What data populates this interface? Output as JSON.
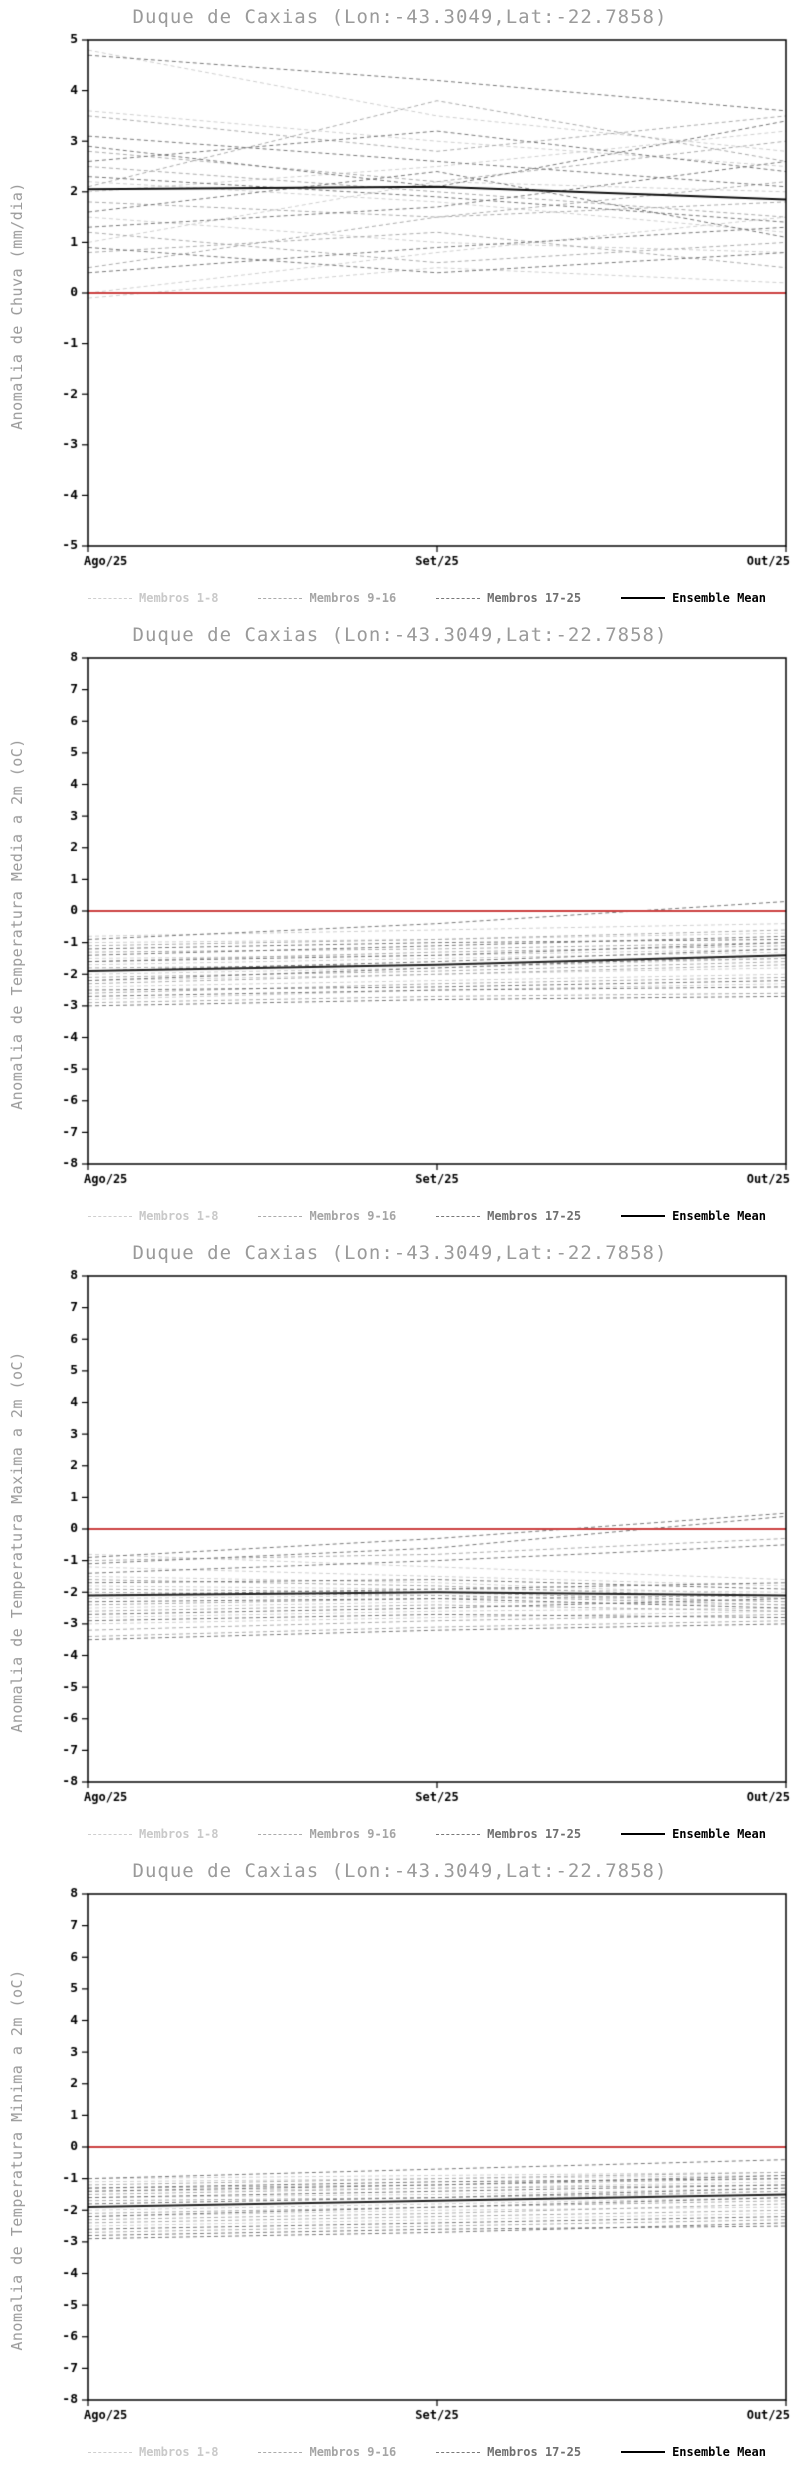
{
  "page": {
    "background": "#ffffff"
  },
  "legend": {
    "entries": [
      {
        "label": "Membros 1-8",
        "color": "#cfcfcf",
        "style": "dashed",
        "label_color": "#c9c9c9"
      },
      {
        "label": "Membros 9-16",
        "color": "#ababab",
        "style": "dashed",
        "label_color": "#a5a5a5"
      },
      {
        "label": "Membros 17-25",
        "color": "#787878",
        "style": "dashed",
        "label_color": "#6f6f6f"
      },
      {
        "label": "Ensemble Mean",
        "color": "#000000",
        "style": "solid",
        "label_color": "#000000"
      }
    ]
  },
  "chart_data": {
    "note": "see charts array",
    "type": "line"
  },
  "charts": [
    {
      "type": "line",
      "title": "Duque de Caxias (Lon:-43.3049,Lat:-22.7858)",
      "ylabel": "Anomalia de Chuva (mm/dia)",
      "ylim": [
        -5,
        5
      ],
      "ytick_step": 1,
      "x_labels": [
        "Ago/25",
        "Set/25",
        "Out/25"
      ],
      "reference_value": 0,
      "reference_color": "#cc4040",
      "mean_color": "#111111",
      "ensemble_mean": [
        2.05,
        2.1,
        1.85
      ],
      "groups": [
        {
          "name": "Membros 1-8",
          "color": "#cfcfcf",
          "series": [
            [
              3.6,
              3.0,
              2.5
            ],
            [
              2.0,
              2.5,
              3.2
            ],
            [
              1.5,
              1.0,
              0.8
            ],
            [
              0.0,
              0.8,
              1.5
            ],
            [
              4.8,
              3.5,
              2.8
            ],
            [
              2.2,
              1.8,
              1.2
            ],
            [
              1.0,
              2.2,
              2.0
            ],
            [
              -0.1,
              0.5,
              0.2
            ]
          ]
        },
        {
          "name": "Membros 9-16",
          "color": "#ababab",
          "series": [
            [
              3.5,
              2.8,
              3.5
            ],
            [
              2.5,
              2.0,
              1.5
            ],
            [
              1.8,
              1.5,
              2.2
            ],
            [
              0.8,
              1.2,
              0.5
            ],
            [
              2.1,
              3.8,
              2.6
            ],
            [
              1.2,
              0.6,
              1.0
            ],
            [
              2.8,
              2.2,
              3.0
            ],
            [
              0.5,
              1.5,
              1.8
            ]
          ]
        },
        {
          "name": "Membros 17-25",
          "color": "#787878",
          "series": [
            [
              4.7,
              4.2,
              3.6
            ],
            [
              2.3,
              1.9,
              1.4
            ],
            [
              1.6,
              2.4,
              1.1
            ],
            [
              0.9,
              0.4,
              0.8
            ],
            [
              3.1,
              2.6,
              2.1
            ],
            [
              2.6,
              3.2,
              2.4
            ],
            [
              1.3,
              1.7,
              2.6
            ],
            [
              0.4,
              0.9,
              1.3
            ],
            [
              2.9,
              2.1,
              3.4
            ]
          ]
        }
      ]
    },
    {
      "type": "line",
      "title": "Duque de Caxias (Lon:-43.3049,Lat:-22.7858)",
      "ylabel": "Anomalia de Temperatura Media a 2m (oC)",
      "ylim": [
        -8,
        8
      ],
      "ytick_step": 1,
      "x_labels": [
        "Ago/25",
        "Set/25",
        "Out/25"
      ],
      "reference_value": 0,
      "reference_color": "#cc4040",
      "mean_color": "#222222",
      "ensemble_mean": [
        -1.9,
        -1.7,
        -1.4
      ],
      "groups": [
        {
          "name": "Membros 1-8",
          "color": "#cfcfcf",
          "series": [
            [
              -2.2,
              -2.0,
              -1.8
            ],
            [
              -1.5,
              -1.4,
              -1.2
            ],
            [
              -2.8,
              -2.5,
              -2.3
            ],
            [
              -1.0,
              -0.9,
              -0.7
            ],
            [
              -2.0,
              -1.8,
              -1.5
            ],
            [
              -1.7,
              -1.5,
              -1.3
            ],
            [
              -2.4,
              -2.2,
              -2.0
            ],
            [
              -0.8,
              -0.6,
              -0.4
            ]
          ]
        },
        {
          "name": "Membros 9-16",
          "color": "#ababab",
          "series": [
            [
              -2.6,
              -2.3,
              -2.1
            ],
            [
              -1.3,
              -1.2,
              -1.0
            ],
            [
              -2.1,
              -1.9,
              -1.6
            ],
            [
              -1.8,
              -1.7,
              -1.5
            ],
            [
              -2.9,
              -2.7,
              -2.6
            ],
            [
              -1.1,
              -0.9,
              -0.6
            ],
            [
              -2.3,
              -2.0,
              -1.7
            ],
            [
              -1.6,
              -1.3,
              -1.1
            ]
          ]
        },
        {
          "name": "Membros 17-25",
          "color": "#787878",
          "series": [
            [
              -3.0,
              -2.8,
              -2.7
            ],
            [
              -1.4,
              -1.1,
              -0.8
            ],
            [
              -2.5,
              -2.4,
              -2.2
            ],
            [
              -1.9,
              -1.6,
              -1.2
            ],
            [
              -2.7,
              -2.5,
              -2.4
            ],
            [
              -1.2,
              -1.0,
              -0.9
            ],
            [
              -2.2,
              -1.8,
              -1.4
            ],
            [
              -0.9,
              -0.4,
              0.3
            ],
            [
              -1.6,
              -1.4,
              -1.0
            ]
          ]
        }
      ]
    },
    {
      "type": "line",
      "title": "Duque de Caxias (Lon:-43.3049,Lat:-22.7858)",
      "ylabel": "Anomalia de Temperatura Maxima a 2m (oC)",
      "ylim": [
        -8,
        8
      ],
      "ytick_step": 1,
      "x_labels": [
        "Ago/25",
        "Set/25",
        "Out/25"
      ],
      "reference_value": 0,
      "reference_color": "#cc4040",
      "mean_color": "#222222",
      "ensemble_mean": [
        -2.1,
        -2.0,
        -2.1
      ],
      "groups": [
        {
          "name": "Membros 1-8",
          "color": "#cfcfcf",
          "series": [
            [
              -2.5,
              -2.3,
              -2.4
            ],
            [
              -1.8,
              -1.9,
              -2.0
            ],
            [
              -3.0,
              -2.8,
              -2.6
            ],
            [
              -1.2,
              -1.5,
              -1.8
            ],
            [
              -2.2,
              -2.1,
              -2.3
            ],
            [
              -2.8,
              -2.6,
              -2.5
            ],
            [
              -1.5,
              -1.7,
              -2.1
            ],
            [
              -0.8,
              -1.2,
              -1.6
            ]
          ]
        },
        {
          "name": "Membros 9-16",
          "color": "#ababab",
          "series": [
            [
              -3.2,
              -2.9,
              -2.7
            ],
            [
              -1.6,
              -1.8,
              -2.2
            ],
            [
              -2.4,
              -2.2,
              -2.1
            ],
            [
              -2.0,
              -2.1,
              -2.4
            ],
            [
              -3.4,
              -3.1,
              -2.9
            ],
            [
              -1.0,
              -0.8,
              -0.3
            ],
            [
              -2.6,
              -2.4,
              -2.6
            ],
            [
              -1.9,
              -2.0,
              -2.3
            ]
          ]
        },
        {
          "name": "Membros 17-25",
          "color": "#787878",
          "series": [
            [
              -3.5,
              -3.2,
              -3.0
            ],
            [
              -1.4,
              -1.0,
              -0.5
            ],
            [
              -2.3,
              -2.2,
              -2.5
            ],
            [
              -2.1,
              -1.9,
              -1.7
            ],
            [
              -2.9,
              -2.7,
              -2.8
            ],
            [
              -1.7,
              -1.6,
              -1.9
            ],
            [
              -2.7,
              -2.5,
              -2.2
            ],
            [
              -1.1,
              -0.6,
              0.4
            ],
            [
              -0.9,
              -0.3,
              0.5
            ]
          ]
        }
      ]
    },
    {
      "type": "line",
      "title": "Duque de Caxias (Lon:-43.3049,Lat:-22.7858)",
      "ylabel": "Anomalia de Temperatura Minima a 2m (oC)",
      "ylim": [
        -8,
        8
      ],
      "ytick_step": 1,
      "x_labels": [
        "Ago/25",
        "Set/25",
        "Out/25"
      ],
      "reference_value": 0,
      "reference_color": "#cc4040",
      "mean_color": "#222222",
      "ensemble_mean": [
        -1.9,
        -1.7,
        -1.5
      ],
      "groups": [
        {
          "name": "Membros 1-8",
          "color": "#cfcfcf",
          "series": [
            [
              -2.0,
              -1.8,
              -1.6
            ],
            [
              -1.4,
              -1.3,
              -1.1
            ],
            [
              -2.5,
              -2.3,
              -2.1
            ],
            [
              -1.1,
              -1.0,
              -0.9
            ],
            [
              -1.9,
              -1.7,
              -1.4
            ],
            [
              -1.6,
              -1.5,
              -1.3
            ],
            [
              -2.2,
              -2.0,
              -1.9
            ],
            [
              -1.0,
              -0.9,
              -0.8
            ]
          ]
        },
        {
          "name": "Membros 9-16",
          "color": "#ababab",
          "series": [
            [
              -2.4,
              -2.2,
              -2.0
            ],
            [
              -1.3,
              -1.2,
              -1.0
            ],
            [
              -2.1,
              -1.9,
              -1.7
            ],
            [
              -1.7,
              -1.6,
              -1.4
            ],
            [
              -2.7,
              -2.5,
              -2.3
            ],
            [
              -1.2,
              -1.0,
              -0.8
            ],
            [
              -2.3,
              -2.1,
              -1.8
            ],
            [
              -1.5,
              -1.3,
              -1.2
            ]
          ]
        },
        {
          "name": "Membros 17-25",
          "color": "#787878",
          "series": [
            [
              -2.9,
              -2.7,
              -2.4
            ],
            [
              -1.4,
              -1.2,
              -0.9
            ],
            [
              -2.6,
              -2.4,
              -2.2
            ],
            [
              -1.8,
              -1.6,
              -1.3
            ],
            [
              -2.8,
              -2.6,
              -2.5
            ],
            [
              -1.3,
              -1.1,
              -1.0
            ],
            [
              -2.2,
              -1.9,
              -1.6
            ],
            [
              -1.0,
              -0.7,
              -0.4
            ],
            [
              -1.6,
              -1.4,
              -1.2
            ]
          ]
        }
      ]
    }
  ]
}
